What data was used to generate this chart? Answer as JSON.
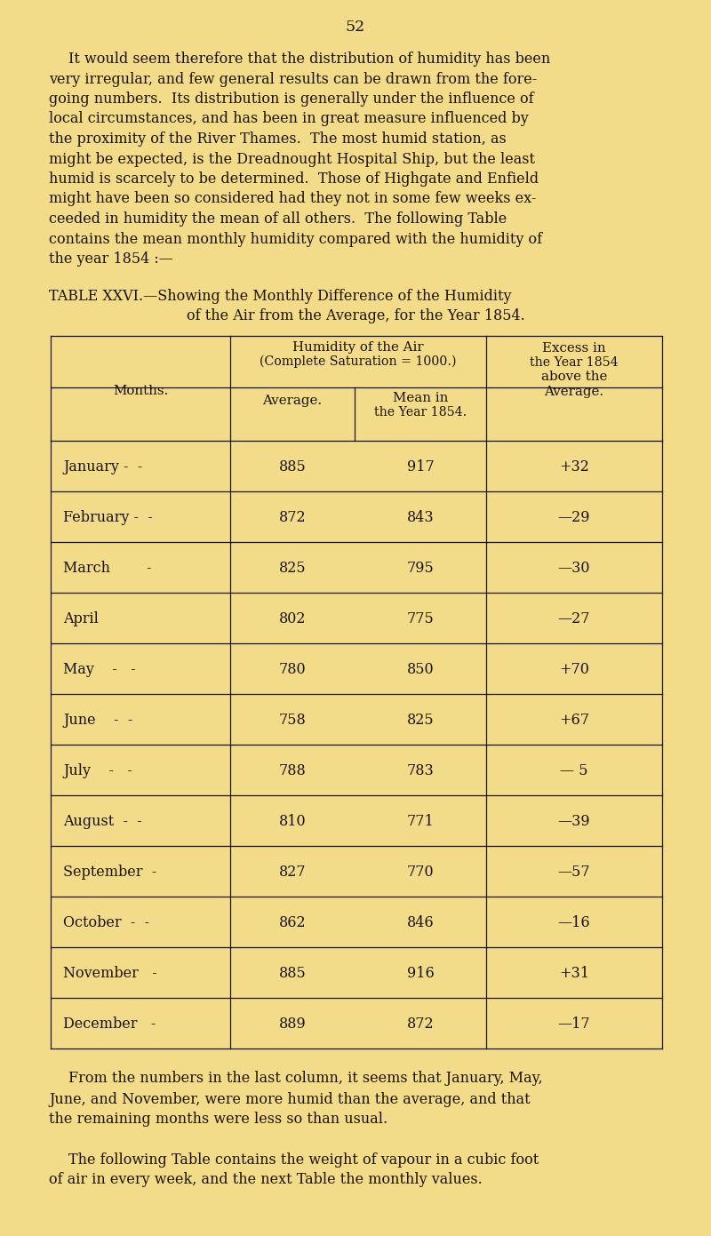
{
  "bg_color": "#f2dc8a",
  "text_color": "#1a1200",
  "page_number": "52",
  "para1_lines": [
    "It would seem therefore that the distribution of humidity has been",
    "very irregular, and few general results can be drawn from the fore-",
    "going numbers.  Its distribution is generally under the influence of",
    "local circumstances, and has been in great measure influenced by",
    "the proximity of the River Thames.  The most humid station, as",
    "might be expected, is the Dreadnought Hospital Ship, but the least",
    "humid is scarcely to be determined.  Those of Highgate and Enfield",
    "might have been so considered had they not in some few weeks ex-",
    "ceeded in humidity the mean of all others.  The following Table",
    "contains the mean monthly humidity compared with the humidity of",
    "the year 1854 :—"
  ],
  "table_title_line1": "TABLE XXVI.—Showing the Monthly Difference of the Humidity",
  "table_title_line2": "of the Air from the Average, for the Year 1854.",
  "col_header_months": "Months.",
  "col_header_humidity1": "Humidity of the Air",
  "col_header_humidity2": "(Complete Saturation = 1000.)",
  "col_header_average": "Average.",
  "col_header_mean1": "Mean in",
  "col_header_mean2": "the Year 1854.",
  "col_header_excess1": "Excess in",
  "col_header_excess2": "the Year 1854",
  "col_header_excess3": "above the",
  "col_header_excess4": "Average.",
  "month_display": [
    "January -  -",
    "February -  -",
    "March        -",
    "April",
    "May    -   -",
    "June    -  -",
    "July    -   -",
    "August  -  -",
    "September  -",
    "October  -  -",
    "November   -",
    "December   -"
  ],
  "averages": [
    "885",
    "872",
    "825",
    "802",
    "780",
    "758",
    "788",
    "810",
    "827",
    "862",
    "885",
    "889"
  ],
  "means": [
    "917",
    "843",
    "795",
    "775",
    "850",
    "825",
    "783",
    "771",
    "770",
    "846",
    "916",
    "872"
  ],
  "excesses": [
    "+32",
    "—29",
    "—30",
    "—27",
    "+70",
    "+67",
    "— 5",
    "—39",
    "—57",
    "—16",
    "+31",
    "—17"
  ],
  "para2_lines": [
    "From the numbers in the last column, it seems that January, May,",
    "June, and November, were more humid than the average, and that",
    "the remaining months were less so than usual."
  ],
  "para3_lines": [
    "The following Table contains the weight of vapour in a cubic foot",
    "of air in every week, and the next Table the monthly values."
  ]
}
